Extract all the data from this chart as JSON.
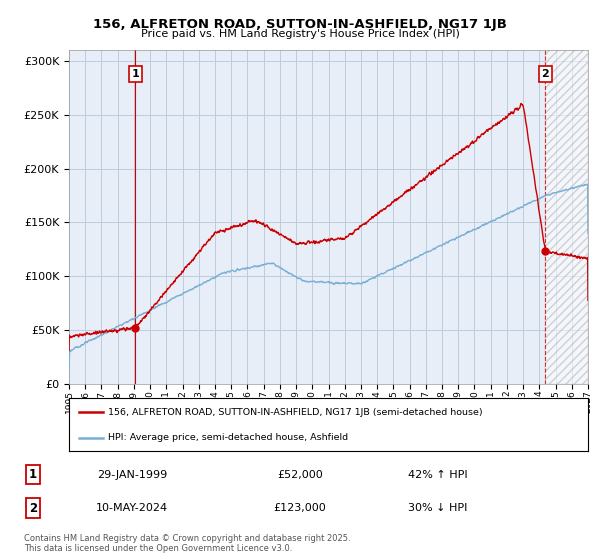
{
  "title1": "156, ALFRETON ROAD, SUTTON-IN-ASHFIELD, NG17 1JB",
  "title2": "Price paid vs. HM Land Registry's House Price Index (HPI)",
  "legend_label1": "156, ALFRETON ROAD, SUTTON-IN-ASHFIELD, NG17 1JB (semi-detached house)",
  "legend_label2": "HPI: Average price, semi-detached house, Ashfield",
  "point1_label": "1",
  "point1_date": "29-JAN-1999",
  "point1_price": "£52,000",
  "point1_hpi": "42% ↑ HPI",
  "point2_label": "2",
  "point2_date": "10-MAY-2024",
  "point2_price": "£123,000",
  "point2_hpi": "30% ↓ HPI",
  "footer": "Contains HM Land Registry data © Crown copyright and database right 2025.\nThis data is licensed under the Open Government Licence v3.0.",
  "ylim": [
    0,
    310000
  ],
  "color_red": "#cc0000",
  "color_blue": "#7aafd4",
  "color_grid": "#bbccdd",
  "bg_color": "#e8eef8",
  "point1_year": 1999.08,
  "point1_value": 52000,
  "point2_year": 2024.37,
  "point2_value": 123000,
  "xmin": 1995,
  "xmax": 2027
}
